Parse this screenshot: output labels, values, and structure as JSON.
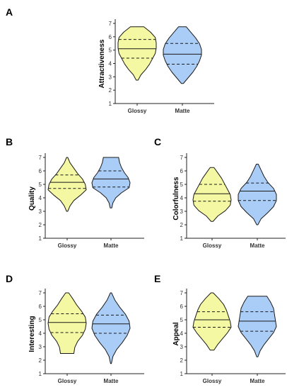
{
  "colors": {
    "glossy": "#f4f8a2",
    "matte": "#aacdf8",
    "outline": "#1a1a1a"
  },
  "chart_data": [
    {
      "panel": "A",
      "type": "violin",
      "ylabel": "Attractiveness",
      "categories": [
        "Glossy",
        "Matte"
      ],
      "ylim": [
        1,
        7
      ],
      "yticks": [
        1,
        2,
        3,
        4,
        5,
        6,
        7
      ],
      "series": [
        {
          "category": "Glossy",
          "min": 2.75,
          "max": 6.75,
          "q1": 4.4,
          "median": 5.1,
          "q3": 5.8,
          "density": [
            0.05,
            0.2,
            0.45,
            0.65,
            0.8,
            0.95,
            1.0,
            1.0,
            0.95,
            0.7,
            0.35
          ]
        },
        {
          "category": "Matte",
          "min": 2.5,
          "max": 6.75,
          "q1": 3.95,
          "median": 4.7,
          "q3": 5.5,
          "density": [
            0.05,
            0.3,
            0.55,
            0.75,
            0.9,
            1.0,
            1.0,
            0.9,
            0.7,
            0.45,
            0.2
          ]
        }
      ]
    },
    {
      "panel": "B",
      "type": "violin",
      "ylabel": "Quality",
      "categories": [
        "Glossy",
        "Matte"
      ],
      "ylim": [
        1,
        7
      ],
      "yticks": [
        1,
        2,
        3,
        4,
        5,
        6,
        7
      ],
      "series": [
        {
          "category": "Glossy",
          "min": 3.0,
          "max": 7.0,
          "q1": 4.7,
          "median": 5.15,
          "q3": 5.7,
          "density": [
            0.03,
            0.15,
            0.35,
            0.7,
            1.0,
            0.95,
            0.8,
            0.55,
            0.35,
            0.15,
            0.03
          ]
        },
        {
          "category": "Matte",
          "min": 3.25,
          "max": 7.0,
          "q1": 4.8,
          "median": 5.4,
          "q3": 6.0,
          "density": [
            0.04,
            0.1,
            0.25,
            0.55,
            0.95,
            1.0,
            0.9,
            0.7,
            0.55,
            0.45,
            0.4
          ]
        }
      ]
    },
    {
      "panel": "C",
      "type": "violin",
      "ylabel": "Colorfulness",
      "categories": [
        "Glossy",
        "Matte"
      ],
      "ylim": [
        1,
        7
      ],
      "yticks": [
        1,
        2,
        3,
        4,
        5,
        6,
        7
      ],
      "series": [
        {
          "category": "Glossy",
          "min": 2.25,
          "max": 6.25,
          "q1": 3.75,
          "median": 4.3,
          "q3": 5.0,
          "density": [
            0.05,
            0.3,
            0.7,
            0.95,
            1.0,
            0.95,
            0.8,
            0.65,
            0.5,
            0.3,
            0.1
          ]
        },
        {
          "category": "Matte",
          "min": 2.0,
          "max": 6.5,
          "q1": 3.8,
          "median": 4.5,
          "q3": 5.1,
          "density": [
            0.03,
            0.2,
            0.55,
            0.85,
            1.0,
            1.0,
            0.85,
            0.55,
            0.35,
            0.2,
            0.05
          ]
        }
      ]
    },
    {
      "panel": "D",
      "type": "violin",
      "ylabel": "Interesting",
      "categories": [
        "Glossy",
        "Matte"
      ],
      "ylim": [
        1,
        7
      ],
      "yticks": [
        1,
        2,
        3,
        4,
        5,
        6,
        7
      ],
      "series": [
        {
          "category": "Glossy",
          "min": 2.5,
          "max": 7.0,
          "q1": 4.05,
          "median": 4.8,
          "q3": 5.45,
          "density": [
            0.35,
            0.4,
            0.55,
            0.8,
            0.95,
            1.0,
            0.95,
            0.75,
            0.5,
            0.3,
            0.08
          ]
        },
        {
          "category": "Matte",
          "min": 1.75,
          "max": 7.0,
          "q1": 4.0,
          "median": 4.7,
          "q3": 5.35,
          "density": [
            0.02,
            0.1,
            0.3,
            0.6,
            0.85,
            1.0,
            0.95,
            0.75,
            0.45,
            0.2,
            0.03
          ]
        }
      ]
    },
    {
      "panel": "E",
      "type": "violin",
      "ylabel": "Appeal",
      "categories": [
        "Glossy",
        "Matte"
      ],
      "ylim": [
        1,
        7
      ],
      "yticks": [
        1,
        2,
        3,
        4,
        5,
        6,
        7
      ],
      "series": [
        {
          "category": "Glossy",
          "min": 2.75,
          "max": 7.0,
          "q1": 4.45,
          "median": 5.0,
          "q3": 5.6,
          "density": [
            0.1,
            0.3,
            0.55,
            0.8,
            1.0,
            0.95,
            0.85,
            0.75,
            0.6,
            0.35,
            0.06
          ]
        },
        {
          "category": "Matte",
          "min": 2.25,
          "max": 6.75,
          "q1": 4.15,
          "median": 4.9,
          "q3": 5.6,
          "density": [
            0.03,
            0.15,
            0.35,
            0.6,
            0.85,
            1.0,
            0.95,
            0.9,
            0.85,
            0.7,
            0.5
          ]
        }
      ]
    }
  ]
}
